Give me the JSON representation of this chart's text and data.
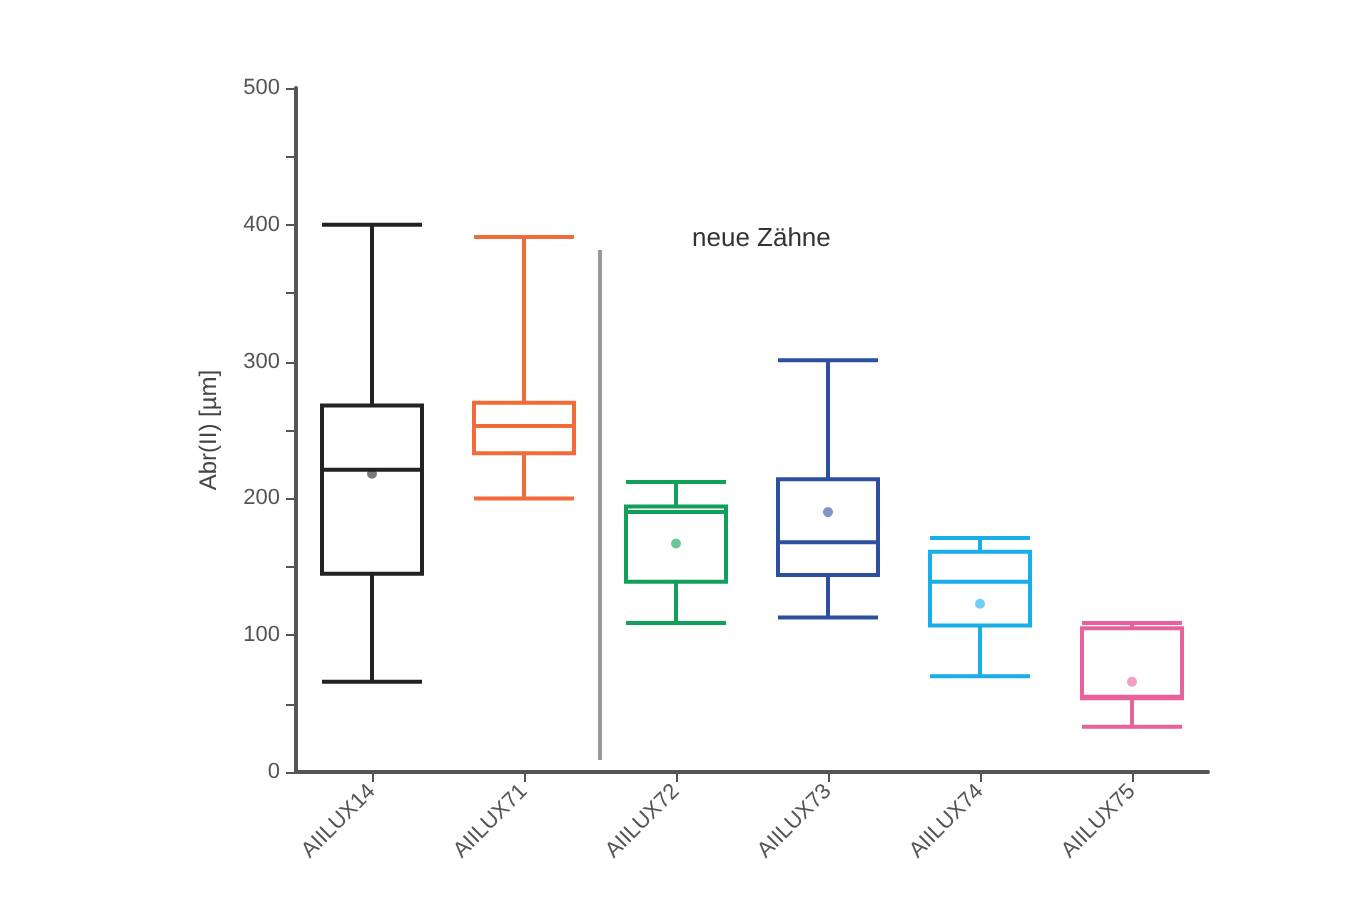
{
  "chart_data": {
    "type": "box",
    "ylabel": "Abr(II) [µm]",
    "categories": [
      "AIILUX14",
      "AIILUX71",
      "AIILUX72",
      "AIILUX73",
      "AIILUX74",
      "AIILUX75"
    ],
    "colors": [
      "#222222",
      "#f26b3a",
      "#10a05a",
      "#2c4fa0",
      "#19aee8",
      "#e8609c"
    ],
    "boxes": [
      {
        "low": 66,
        "q1": 145,
        "median": 221,
        "q3": 268,
        "high": 400,
        "mean": 218
      },
      {
        "low": 200,
        "q1": 233,
        "median": 253,
        "q3": 270,
        "high": 391
      },
      {
        "low": 109,
        "q1": 139,
        "median": 190,
        "q3": 194,
        "high": 212,
        "mean": 167
      },
      {
        "low": 113,
        "q1": 144,
        "median": 168,
        "q3": 214,
        "high": 301,
        "mean": 190
      },
      {
        "low": 70,
        "q1": 107,
        "median": 139,
        "q3": 161,
        "high": 171,
        "mean": 123
      },
      {
        "low": 33,
        "q1": 54,
        "median": 55,
        "q3": 105,
        "high": 109,
        "mean": 66
      }
    ],
    "ylim": [
      0,
      500
    ],
    "yticks": [
      0,
      {
        "value": 50,
        "label": null
      },
      100,
      {
        "value": 150,
        "label": null
      },
      200,
      {
        "value": 250,
        "label": null
      },
      300,
      {
        "value": 350,
        "label": null
      },
      400,
      {
        "value": 450,
        "label": null
      },
      500
    ],
    "annotations": [
      "neue Zähne"
    ],
    "grid": false
  }
}
